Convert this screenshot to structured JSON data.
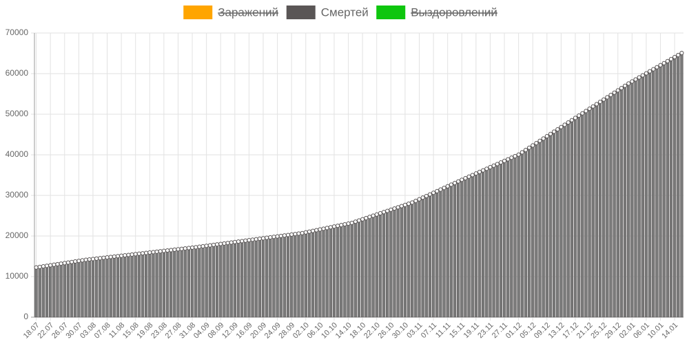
{
  "chart_data": {
    "type": "bar",
    "categories": [
      "18.07",
      null,
      null,
      null,
      "22.07",
      null,
      null,
      null,
      "26.07",
      null,
      null,
      null,
      "30.07",
      null,
      null,
      null,
      "03.08",
      null,
      null,
      null,
      "07.08",
      null,
      null,
      null,
      "11.08",
      null,
      null,
      null,
      "15.08",
      null,
      null,
      null,
      "19.08",
      null,
      null,
      null,
      "23.08",
      null,
      null,
      null,
      "27.08",
      null,
      null,
      null,
      "31.08",
      null,
      null,
      null,
      "04.09",
      null,
      null,
      null,
      "08.09",
      null,
      null,
      null,
      "12.09",
      null,
      null,
      null,
      "16.09",
      null,
      null,
      null,
      "20.09",
      null,
      null,
      null,
      "24.09",
      null,
      null,
      null,
      "28.09",
      null,
      null,
      null,
      "02.10",
      null,
      null,
      null,
      "06.10",
      null,
      null,
      null,
      "10.10",
      null,
      null,
      null,
      "14.10",
      null,
      null,
      null,
      "18.10",
      null,
      null,
      null,
      "22.10",
      null,
      null,
      null,
      "26.10",
      null,
      null,
      null,
      "30.10",
      null,
      null,
      null,
      "03.11",
      null,
      null,
      null,
      "07.11",
      null,
      null,
      null,
      "11.11",
      null,
      null,
      null,
      "15.11",
      null,
      null,
      null,
      "19.11",
      null,
      null,
      null,
      "23.11",
      null,
      null,
      null,
      "27.11",
      null,
      null,
      null,
      "01.12",
      null,
      null,
      null,
      "05.12",
      null,
      null,
      null,
      "09.12",
      null,
      null,
      null,
      "13.12",
      null,
      null,
      null,
      "17.12",
      null,
      null,
      null,
      "21.12",
      null,
      null,
      null,
      "25.12",
      null,
      null,
      null,
      "29.12",
      null,
      null,
      null,
      "02.01",
      null,
      null,
      null,
      "06.01",
      null,
      null,
      null,
      "10.01",
      null,
      null,
      null,
      "14.01",
      null,
      null
    ],
    "series": [
      {
        "name": "Заражений",
        "color": "#ffa500",
        "hidden": true
      },
      {
        "name": "Смертей",
        "color": "#5a5656",
        "values": [
          12245,
          12380,
          12515,
          12650,
          12785,
          12920,
          13055,
          13190,
          13325,
          13460,
          13595,
          13730,
          13865,
          14000,
          14130,
          14230,
          14330,
          14430,
          14530,
          14630,
          14730,
          14830,
          14930,
          15030,
          15130,
          15230,
          15330,
          15430,
          15530,
          15630,
          15730,
          15830,
          15930,
          16030,
          16130,
          16230,
          16330,
          16430,
          16530,
          16630,
          16730,
          16830,
          16930,
          17030,
          17130,
          17230,
          17346,
          17462,
          17578,
          17694,
          17810,
          17926,
          18042,
          18158,
          18274,
          18390,
          18506,
          18622,
          18738,
          18854,
          18970,
          19086,
          19202,
          19318,
          19434,
          19550,
          19666,
          19782,
          19898,
          20014,
          20130,
          20246,
          20362,
          20478,
          20594,
          20710,
          20890,
          21070,
          21250,
          21430,
          21610,
          21790,
          21970,
          22150,
          22330,
          22510,
          22690,
          22870,
          23050,
          23230,
          23525,
          23820,
          24115,
          24410,
          24705,
          25000,
          25295,
          25590,
          25885,
          26180,
          26475,
          26770,
          27065,
          27360,
          27655,
          27950,
          28245,
          28645,
          29045,
          29445,
          29845,
          30245,
          30645,
          31045,
          31445,
          31845,
          32245,
          32645,
          33045,
          33445,
          33845,
          34233,
          34621,
          35009,
          35397,
          35785,
          36173,
          36561,
          36949,
          37337,
          37725,
          38113,
          38501,
          38889,
          39277,
          39665,
          40053,
          40618,
          41183,
          41748,
          42313,
          42878,
          43443,
          44008,
          44573,
          45138,
          45703,
          46268,
          46833,
          47398,
          47963,
          48528,
          49093,
          49658,
          50223,
          50788,
          51353,
          51918,
          52483,
          53048,
          53613,
          54178,
          54743,
          55308,
          55873,
          56438,
          57003,
          57568,
          58069,
          58570,
          59071,
          59572,
          60073,
          60574,
          61075,
          61576,
          62077,
          62578,
          63079,
          63580,
          64081,
          64582,
          65083
        ]
      },
      {
        "name": "Выздоровлений",
        "color": "#0ec60e",
        "hidden": true
      }
    ],
    "ylim": [
      0,
      70000
    ],
    "yticks": [
      0,
      10000,
      20000,
      30000,
      40000,
      50000,
      60000,
      70000
    ],
    "grid": true
  }
}
